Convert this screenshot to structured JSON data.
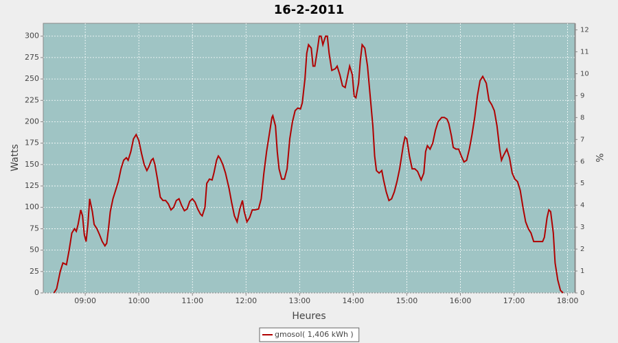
{
  "chart_data": {
    "type": "line",
    "title": "16-2-2011",
    "x_label": "Heures",
    "y_label": "Watts",
    "y2_label": "%",
    "x": [
      505,
      508,
      512,
      515,
      519,
      522,
      525,
      528,
      530,
      532,
      535,
      537,
      539,
      541,
      543,
      545,
      548,
      550,
      553,
      556,
      559,
      562,
      564,
      566,
      568,
      571,
      574,
      577,
      580,
      583,
      586,
      588,
      591,
      594,
      597,
      600,
      603,
      606,
      609,
      611,
      614,
      616,
      618,
      621,
      624,
      627,
      630,
      633,
      636,
      639,
      642,
      645,
      648,
      651,
      654,
      657,
      660,
      663,
      666,
      669,
      671,
      674,
      676,
      679,
      682,
      684,
      687,
      689,
      691,
      694,
      697,
      701,
      704,
      707,
      710,
      713,
      716,
      718,
      721,
      724,
      727,
      730,
      734,
      737,
      740,
      743,
      746,
      749,
      750,
      753,
      755,
      757,
      760,
      763,
      766,
      769,
      772,
      775,
      778,
      781,
      783,
      786,
      788,
      790,
      793,
      795,
      797,
      800,
      802,
      804,
      806,
      809,
      811,
      813,
      816,
      820,
      822,
      825,
      828,
      831,
      834,
      836,
      839,
      841,
      843,
      846,
      848,
      850,
      853,
      856,
      859,
      862,
      864,
      866,
      869,
      872,
      874,
      877,
      880,
      883,
      886,
      889,
      892,
      896,
      898,
      900,
      903,
      906,
      909,
      912,
      916,
      919,
      921,
      923,
      926,
      929,
      932,
      935,
      939,
      942,
      945,
      947,
      950,
      952,
      955,
      958,
      961,
      964,
      967,
      970,
      973,
      976,
      979,
      982,
      985,
      989,
      992,
      995,
      998,
      1001,
      1004,
      1006,
      1008,
      1012,
      1015,
      1018,
      1021,
      1024,
      1027,
      1030,
      1033,
      1036,
      1039,
      1042,
      1045,
      1048,
      1052,
      1054,
      1057,
      1059,
      1061,
      1064,
      1066,
      1069,
      1072,
      1075
    ],
    "series": [
      {
        "name": "gmosol( 1,406 kWh )",
        "color": "#b00000",
        "values": [
          0,
          5,
          25,
          35,
          33,
          50,
          70,
          75,
          72,
          80,
          97,
          90,
          68,
          60,
          80,
          110,
          95,
          80,
          75,
          68,
          60,
          55,
          58,
          75,
          95,
          110,
          120,
          130,
          145,
          155,
          158,
          155,
          165,
          180,
          185,
          178,
          163,
          150,
          143,
          147,
          155,
          157,
          150,
          132,
          112,
          108,
          108,
          104,
          97,
          100,
          108,
          110,
          102,
          96,
          98,
          107,
          110,
          106,
          98,
          92,
          90,
          100,
          128,
          133,
          132,
          140,
          155,
          160,
          157,
          150,
          140,
          122,
          105,
          90,
          83,
          98,
          108,
          95,
          83,
          88,
          97,
          97,
          98,
          110,
          140,
          165,
          185,
          205,
          207,
          195,
          165,
          145,
          133,
          133,
          145,
          180,
          200,
          213,
          216,
          215,
          222,
          250,
          280,
          290,
          286,
          265,
          265,
          285,
          300,
          300,
          290,
          300,
          300,
          280,
          260,
          262,
          265,
          255,
          242,
          240,
          255,
          265,
          255,
          230,
          228,
          245,
          272,
          290,
          286,
          265,
          230,
          195,
          160,
          143,
          140,
          143,
          132,
          118,
          108,
          110,
          118,
          130,
          145,
          172,
          182,
          180,
          160,
          145,
          145,
          142,
          132,
          140,
          165,
          172,
          168,
          175,
          190,
          200,
          205,
          205,
          203,
          198,
          183,
          170,
          168,
          168,
          160,
          153,
          155,
          168,
          185,
          205,
          230,
          248,
          253,
          245,
          225,
          220,
          213,
          195,
          168,
          155,
          160,
          168,
          158,
          140,
          133,
          130,
          120,
          100,
          83,
          75,
          70,
          60,
          60,
          60,
          60,
          65,
          88,
          97,
          95,
          70,
          35,
          15,
          3,
          0
        ]
      }
    ],
    "xlim": [
      493,
      1088
    ],
    "xticks": [
      {
        "value": 540,
        "label": "09:00"
      },
      {
        "value": 600,
        "label": "10:00"
      },
      {
        "value": 660,
        "label": "11:00"
      },
      {
        "value": 720,
        "label": "12:00"
      },
      {
        "value": 780,
        "label": "13:00"
      },
      {
        "value": 840,
        "label": "14:00"
      },
      {
        "value": 900,
        "label": "15:00"
      },
      {
        "value": 960,
        "label": "16:00"
      },
      {
        "value": 1020,
        "label": "17:00"
      },
      {
        "value": 1080,
        "label": "18:00"
      }
    ],
    "ylim": [
      0,
      315
    ],
    "yticks": [
      0,
      25,
      50,
      75,
      100,
      125,
      150,
      175,
      200,
      225,
      250,
      275,
      300
    ],
    "y2lim": [
      0,
      12.3
    ],
    "y2ticks": [
      0,
      1,
      2,
      3,
      4,
      5,
      6,
      7,
      8,
      9,
      10,
      11,
      12
    ],
    "grid": true,
    "legend": "bottom",
    "background": "#9fc4c4"
  }
}
